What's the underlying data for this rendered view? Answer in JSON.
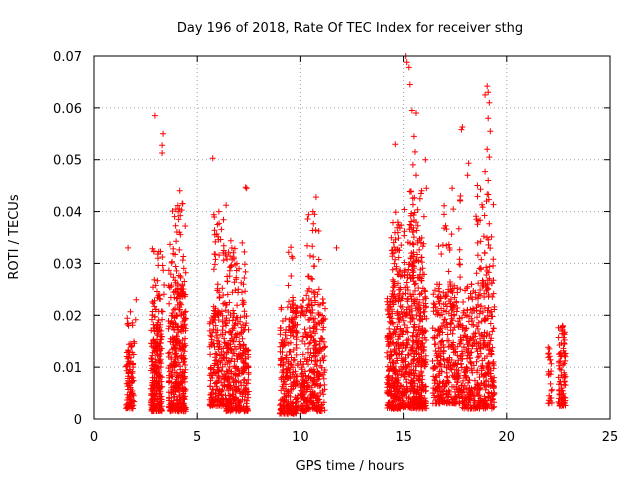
{
  "chart_data": {
    "type": "scatter",
    "title": "Day 196 of 2018, Rate Of TEC Index for receiver sthg",
    "xlabel": "GPS time / hours",
    "ylabel": "ROTI / TECUs",
    "xlim": [
      0,
      25
    ],
    "ylim": [
      0,
      0.07
    ],
    "xticks": [
      0,
      5,
      10,
      15,
      20,
      25
    ],
    "xtick_labels": [
      "0",
      "5",
      "10",
      "15",
      "20",
      "25"
    ],
    "yticks": [
      0,
      0.01,
      0.02,
      0.03,
      0.04,
      0.05,
      0.06,
      0.07
    ],
    "ytick_labels": [
      "0",
      "0.01",
      "0.02",
      "0.03",
      "0.04",
      "0.05",
      "0.06",
      "0.07"
    ],
    "grid": true,
    "marker": "plus",
    "color": "#ff0000",
    "clusters": [
      {
        "x_range": [
          1.55,
          1.95
        ],
        "y_range": [
          0.002,
          0.014
        ],
        "count": 90
      },
      {
        "x_range": [
          1.6,
          2.1
        ],
        "y_range": [
          0.014,
          0.023
        ],
        "count": 14
      },
      {
        "x_range": [
          2.75,
          3.3
        ],
        "y_range": [
          0.0015,
          0.02
        ],
        "count": 220
      },
      {
        "x_range": [
          2.8,
          3.4
        ],
        "y_range": [
          0.02,
          0.034
        ],
        "count": 35
      },
      {
        "x_range": [
          3.6,
          4.45
        ],
        "y_range": [
          0.0015,
          0.026
        ],
        "count": 330
      },
      {
        "x_range": [
          3.6,
          4.45
        ],
        "y_range": [
          0.026,
          0.042
        ],
        "count": 40
      },
      {
        "x_range": [
          5.6,
          6.3
        ],
        "y_range": [
          0.0025,
          0.02
        ],
        "count": 160
      },
      {
        "x_range": [
          5.8,
          6.3
        ],
        "y_range": [
          0.02,
          0.04
        ],
        "count": 45
      },
      {
        "x_range": [
          6.3,
          7.5
        ],
        "y_range": [
          0.0015,
          0.018
        ],
        "count": 280
      },
      {
        "x_range": [
          6.3,
          7.4
        ],
        "y_range": [
          0.018,
          0.035
        ],
        "count": 80
      },
      {
        "x_range": [
          9.0,
          9.9
        ],
        "y_range": [
          0.001,
          0.022
        ],
        "count": 240
      },
      {
        "x_range": [
          9.3,
          9.7
        ],
        "y_range": [
          0.022,
          0.035
        ],
        "count": 10
      },
      {
        "x_range": [
          10.0,
          11.2
        ],
        "y_range": [
          0.0015,
          0.024
        ],
        "count": 300
      },
      {
        "x_range": [
          10.3,
          10.9
        ],
        "y_range": [
          0.024,
          0.04
        ],
        "count": 25
      },
      {
        "x_range": [
          14.2,
          14.9
        ],
        "y_range": [
          0.002,
          0.024
        ],
        "count": 250
      },
      {
        "x_range": [
          14.4,
          14.9
        ],
        "y_range": [
          0.024,
          0.041
        ],
        "count": 50
      },
      {
        "x_range": [
          14.9,
          16.1
        ],
        "y_range": [
          0.002,
          0.03
        ],
        "count": 420
      },
      {
        "x_range": [
          15.0,
          16.0
        ],
        "y_range": [
          0.03,
          0.045
        ],
        "count": 60
      },
      {
        "x_range": [
          16.4,
          17.8
        ],
        "y_range": [
          0.003,
          0.025
        ],
        "count": 320
      },
      {
        "x_range": [
          16.6,
          17.8
        ],
        "y_range": [
          0.025,
          0.043
        ],
        "count": 35
      },
      {
        "x_range": [
          17.8,
          19.4
        ],
        "y_range": [
          0.002,
          0.026
        ],
        "count": 380
      },
      {
        "x_range": [
          18.5,
          19.4
        ],
        "y_range": [
          0.026,
          0.046
        ],
        "count": 50
      },
      {
        "x_range": [
          22.0,
          22.2
        ],
        "y_range": [
          0.003,
          0.015
        ],
        "count": 25
      },
      {
        "x_range": [
          22.5,
          22.85
        ],
        "y_range": [
          0.0025,
          0.018
        ],
        "count": 90
      }
    ],
    "outliers": [
      [
        1.65,
        0.033
      ],
      [
        2.05,
        0.023
      ],
      [
        2.95,
        0.0585
      ],
      [
        3.35,
        0.055
      ],
      [
        3.3,
        0.0528
      ],
      [
        3.3,
        0.0513
      ],
      [
        4.15,
        0.044
      ],
      [
        5.75,
        0.0503
      ],
      [
        6.05,
        0.04
      ],
      [
        6.4,
        0.0412
      ],
      [
        7.35,
        0.0447
      ],
      [
        7.4,
        0.0445
      ],
      [
        10.75,
        0.0428
      ],
      [
        10.6,
        0.04
      ],
      [
        11.75,
        0.033
      ],
      [
        14.6,
        0.053
      ],
      [
        15.1,
        0.07
      ],
      [
        15.15,
        0.0688
      ],
      [
        15.25,
        0.0678
      ],
      [
        15.3,
        0.0645
      ],
      [
        15.4,
        0.0595
      ],
      [
        15.6,
        0.059
      ],
      [
        15.5,
        0.0545
      ],
      [
        15.55,
        0.0515
      ],
      [
        15.45,
        0.049
      ],
      [
        15.6,
        0.047
      ],
      [
        16.05,
        0.05
      ],
      [
        16.1,
        0.0445
      ],
      [
        17.35,
        0.0445
      ],
      [
        17.85,
        0.0563
      ],
      [
        17.8,
        0.0558
      ],
      [
        18.15,
        0.0493
      ],
      [
        18.1,
        0.047
      ],
      [
        17.75,
        0.043
      ],
      [
        19.05,
        0.0642
      ],
      [
        19.1,
        0.063
      ],
      [
        18.95,
        0.0625
      ],
      [
        19.15,
        0.061
      ],
      [
        19.1,
        0.058
      ],
      [
        19.2,
        0.0555
      ],
      [
        19.05,
        0.052
      ],
      [
        19.15,
        0.0505
      ],
      [
        18.95,
        0.0477
      ],
      [
        19.1,
        0.046
      ]
    ]
  }
}
